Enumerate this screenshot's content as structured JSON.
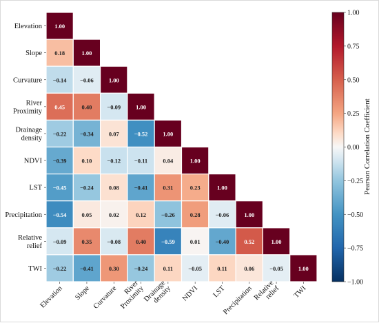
{
  "chart_data": {
    "type": "heatmap",
    "title": "",
    "variables": [
      "Elevation",
      "Slope",
      "Curvature",
      "River Proximity",
      "Drainage density",
      "NDVI",
      "LST",
      "Precipitation",
      "Relative relief",
      "TWI"
    ],
    "y_labels": [
      [
        "Elevation"
      ],
      [
        "Slope"
      ],
      [
        "Curvature"
      ],
      [
        "River",
        "Proximity"
      ],
      [
        "Drainage",
        "density"
      ],
      [
        "NDVI"
      ],
      [
        "LST"
      ],
      [
        "Precipitation"
      ],
      [
        "Relative",
        "relief"
      ],
      [
        "TWI"
      ]
    ],
    "x_labels": [
      [
        "Elevation"
      ],
      [
        "Slope"
      ],
      [
        "Curvature"
      ],
      [
        "River",
        "Proximity"
      ],
      [
        "Drainage",
        "density"
      ],
      [
        "NDVI"
      ],
      [
        "LST"
      ],
      [
        "Precipitation"
      ],
      [
        "Relative",
        "relief"
      ],
      [
        "TWI"
      ]
    ],
    "matrix_lower": [
      [
        1.0
      ],
      [
        0.18,
        1.0
      ],
      [
        -0.14,
        -0.06,
        1.0
      ],
      [
        0.45,
        0.4,
        -0.09,
        1.0
      ],
      [
        -0.22,
        -0.34,
        0.07,
        -0.52,
        1.0
      ],
      [
        -0.39,
        0.1,
        -0.12,
        -0.11,
        0.04,
        1.0
      ],
      [
        -0.45,
        -0.24,
        0.08,
        -0.41,
        0.31,
        0.23,
        1.0
      ],
      [
        -0.54,
        0.05,
        0.02,
        0.12,
        -0.26,
        0.28,
        -0.06,
        1.0
      ],
      [
        -0.09,
        0.35,
        -0.08,
        0.4,
        -0.59,
        0.01,
        -0.4,
        0.52,
        1.0
      ],
      [
        -0.22,
        -0.41,
        0.3,
        -0.24,
        0.11,
        -0.05,
        0.11,
        0.06,
        -0.05,
        1.0
      ]
    ],
    "colorbar": {
      "label": "Pearson Correlation Coefficient",
      "min": -1.0,
      "max": 1.0,
      "ticks": [
        "1.00",
        "0.75",
        "0.50",
        "0.25",
        "0.00",
        "−0.25",
        "−0.50",
        "−0.75",
        "−1.00"
      ],
      "tick_values": [
        1.0,
        0.75,
        0.5,
        0.25,
        0.0,
        -0.25,
        -0.5,
        -0.75,
        -1.0
      ]
    },
    "colormap": "RdBu_r",
    "value_format": "2 decimals",
    "grid": false
  }
}
